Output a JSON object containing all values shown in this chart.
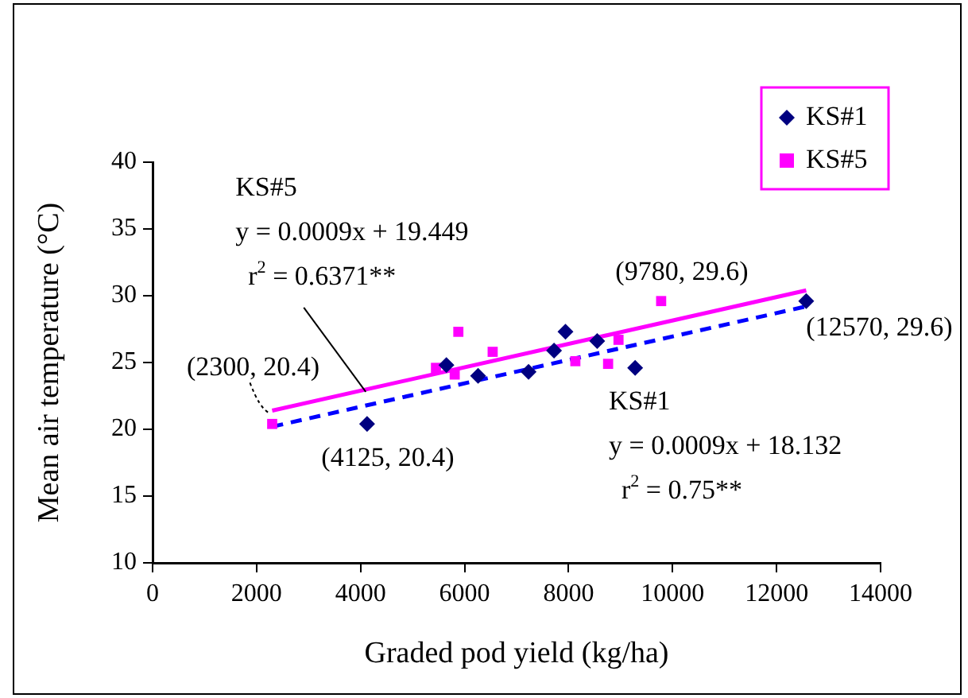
{
  "chart_data": {
    "type": "scatter",
    "xlabel": "Graded pod yield (kg/ha)",
    "ylabel": "Mean air temperature (°C)",
    "xlim": [
      0,
      14000
    ],
    "xticks": [
      0,
      2000,
      4000,
      6000,
      8000,
      10000,
      12000,
      14000
    ],
    "ylim": [
      10,
      40
    ],
    "yticks": [
      10,
      15,
      20,
      25,
      30,
      35,
      40
    ],
    "grid": false,
    "legend": "top right",
    "series": [
      {
        "name": "KS#1",
        "marker": "diamond",
        "color": "#000080",
        "x": [
          4125,
          5650,
          6260,
          7230,
          7720,
          7940,
          8550,
          9280,
          12570
        ],
        "values": [
          20.4,
          24.8,
          24.0,
          24.3,
          25.9,
          27.3,
          26.6,
          24.6,
          29.6
        ]
      },
      {
        "name": "KS#5",
        "marker": "square",
        "color": "#ff00ff",
        "x": [
          2300,
          5450,
          5810,
          5880,
          6540,
          8130,
          8760,
          8960,
          9780
        ],
        "values": [
          20.4,
          24.6,
          24.1,
          27.3,
          25.8,
          25.1,
          24.9,
          26.7,
          29.6
        ]
      },
      {
        "type": "line",
        "color": "#0000ff",
        "line_style": "dashed",
        "x": [
          2300,
          12570
        ],
        "values": [
          20.2,
          29.2
        ]
      },
      {
        "type": "line",
        "color": "#ff00ff",
        "line_style": "solid",
        "x": [
          2300,
          12570
        ],
        "values": [
          21.4,
          30.4
        ]
      }
    ],
    "annotations": [
      {
        "text": "(2300, 20.4)",
        "x": 2300,
        "y": 20.4
      },
      {
        "text": "(4125, 20.4)",
        "x": 4125,
        "y": 20.4
      },
      {
        "text": "(9780, 29.6)",
        "x": 9780,
        "y": 29.6
      },
      {
        "text": "(12570, 29.6)",
        "x": 12570,
        "y": 29.6
      },
      {
        "text": "KS#5\ny = 0.0009x + 19.449\nr$^{2}$ = 0.6371**",
        "x": 4100,
        "y": 22.8
      },
      "KS#1\ny = 0.0009x + 18.132\nr$^{2}$ = 0.75**"
    ]
  }
}
